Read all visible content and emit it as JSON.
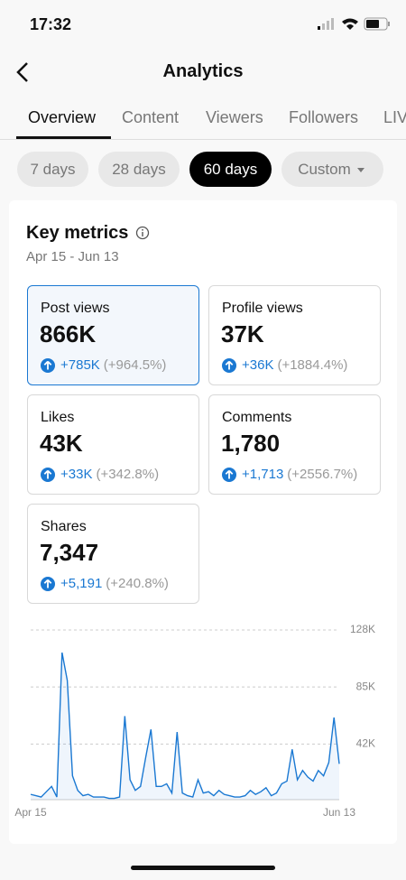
{
  "status_bar": {
    "time": "17:32"
  },
  "header": {
    "title": "Analytics"
  },
  "tabs": {
    "items": [
      "Overview",
      "Content",
      "Viewers",
      "Followers",
      "LIV"
    ],
    "selected": 0
  },
  "date_ranges": {
    "items": [
      "7 days",
      "28 days",
      "60 days",
      "Custom"
    ],
    "selected": 2
  },
  "key_metrics": {
    "title": "Key metrics",
    "period": "Apr 15 - Jun 13",
    "selected": 0,
    "cards": [
      {
        "label": "Post views",
        "value": "866K",
        "change": "+785K",
        "percent": "(+964.5%)"
      },
      {
        "label": "Profile views",
        "value": "37K",
        "change": "+36K",
        "percent": "(+1884.4%)"
      },
      {
        "label": "Likes",
        "value": "43K",
        "change": "+33K",
        "percent": "(+342.8%)"
      },
      {
        "label": "Comments",
        "value": "1,780",
        "change": "+1,713",
        "percent": "(+2556.7%)"
      },
      {
        "label": "Shares",
        "value": "7,347",
        "change": "+5,191",
        "percent": "(+240.8%)"
      }
    ]
  },
  "chart_data": {
    "type": "line",
    "color": "#1a78d2",
    "categories": [
      "Apr 15",
      null,
      null,
      null,
      null,
      null,
      null,
      null,
      null,
      null,
      null,
      null,
      null,
      null,
      null,
      null,
      null,
      null,
      null,
      null,
      null,
      null,
      null,
      null,
      null,
      null,
      null,
      null,
      null,
      null,
      null,
      null,
      null,
      null,
      null,
      null,
      null,
      null,
      null,
      null,
      null,
      null,
      null,
      null,
      null,
      null,
      null,
      null,
      null,
      null,
      null,
      null,
      null,
      null,
      null,
      null,
      null,
      null,
      null,
      "Jun 13"
    ],
    "values": [
      4000,
      3000,
      2000,
      6000,
      10000,
      2000,
      111000,
      90000,
      18000,
      7000,
      3000,
      4000,
      2000,
      2000,
      2000,
      1000,
      1000,
      2000,
      63000,
      15000,
      7000,
      10000,
      32000,
      53000,
      10000,
      10000,
      12000,
      5000,
      51000,
      5000,
      3000,
      2000,
      15000,
      5000,
      6000,
      3000,
      7000,
      4000,
      3000,
      2000,
      2000,
      3000,
      7000,
      4000,
      6000,
      9000,
      3000,
      5000,
      12000,
      14000,
      38000,
      15000,
      22000,
      17000,
      14000,
      22000,
      18000,
      28000,
      62000,
      27000
    ],
    "ylim": [
      0,
      128000
    ],
    "yticks": [
      {
        "value": 42000,
        "label": "42K"
      },
      {
        "value": 85000,
        "label": "85K"
      },
      {
        "value": 128000,
        "label": "128K"
      }
    ],
    "grid": true
  }
}
